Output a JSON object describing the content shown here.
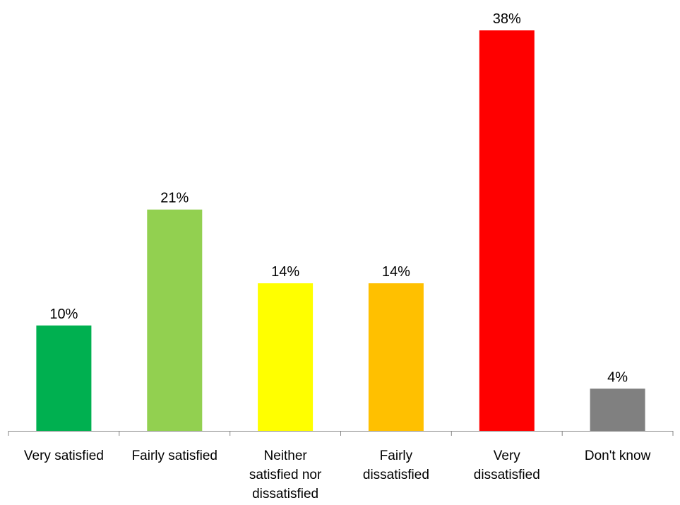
{
  "chart_data": {
    "type": "bar",
    "title": "",
    "xlabel": "",
    "ylabel": "",
    "ylim": [
      0,
      38
    ],
    "grid": false,
    "categories": [
      [
        "Very satisfied"
      ],
      [
        "Fairly satisfied"
      ],
      [
        "Neither",
        "satisfied nor",
        "dissatisfied"
      ],
      [
        "Fairly",
        "dissatisfied"
      ],
      [
        "Very",
        "dissatisfied"
      ],
      [
        "Don't know"
      ]
    ],
    "values": [
      10,
      21,
      14,
      14,
      38,
      4
    ],
    "value_labels": [
      "10%",
      "21%",
      "14%",
      "14%",
      "38%",
      "4%"
    ],
    "colors": [
      "#00b050",
      "#92d050",
      "#ffff00",
      "#ffc000",
      "#ff0000",
      "#808080"
    ],
    "axis_color": "#868686"
  }
}
